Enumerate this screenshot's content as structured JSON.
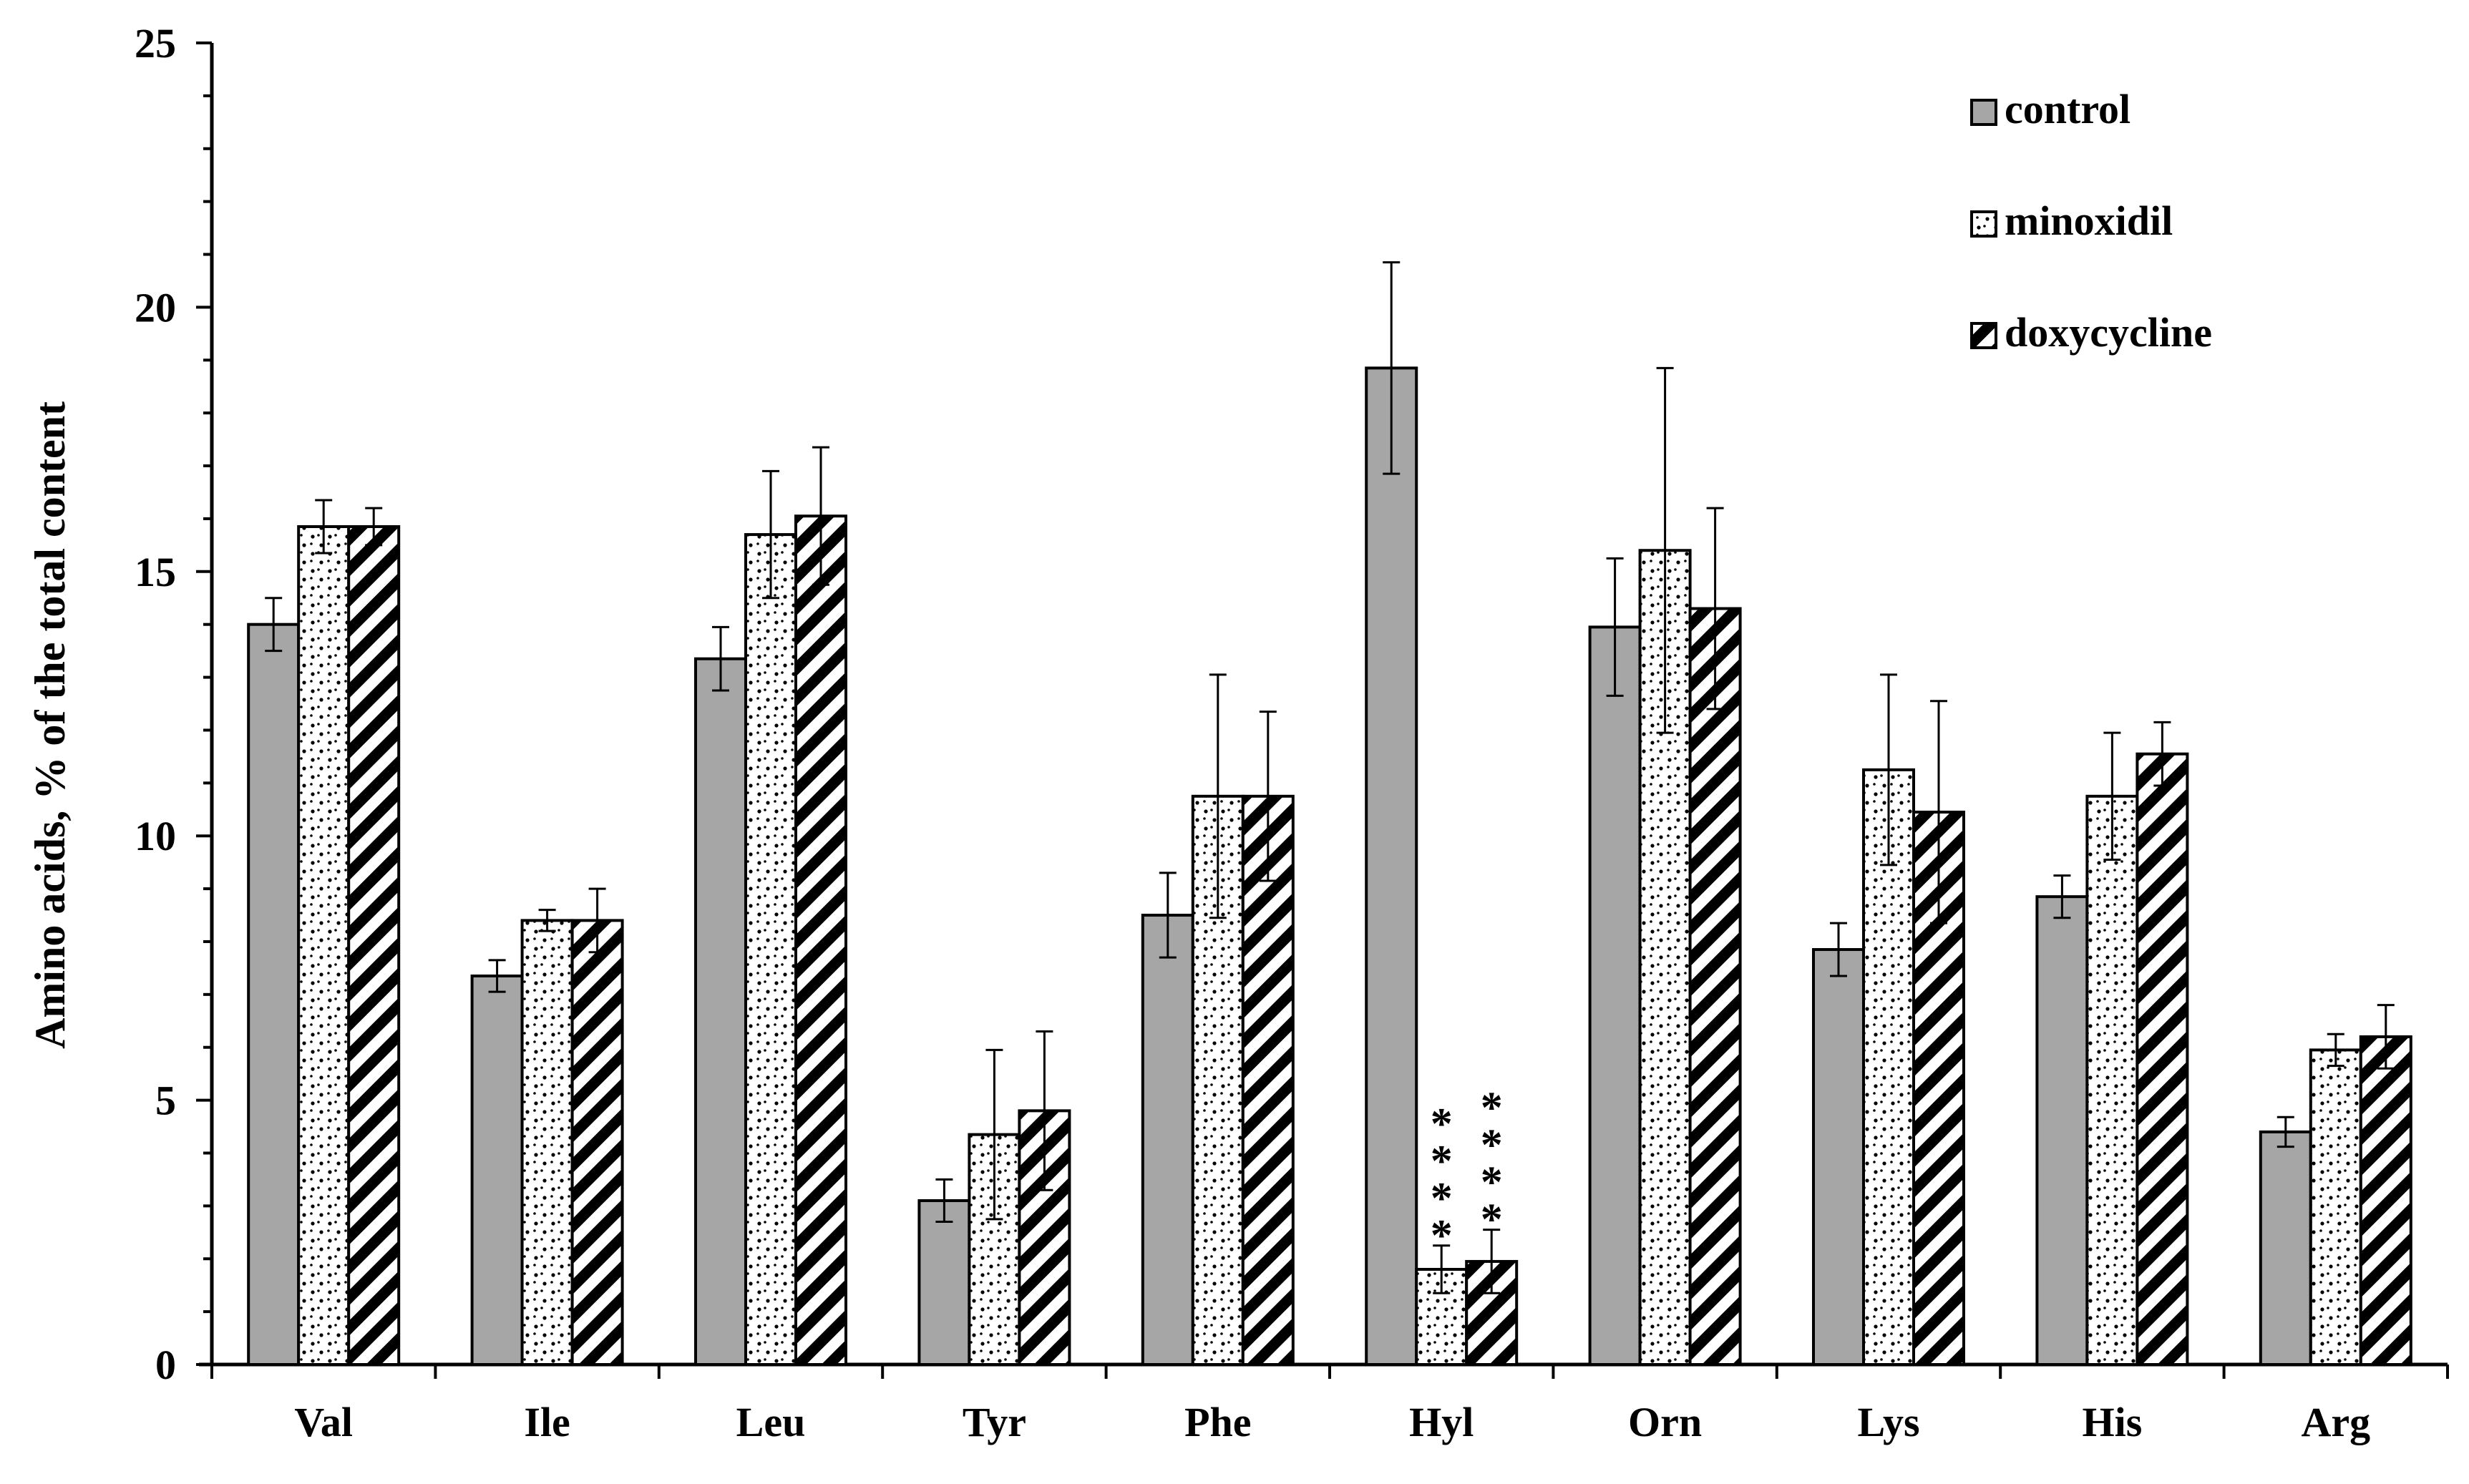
{
  "chart_data": {
    "type": "bar",
    "title": "",
    "xlabel": "",
    "ylabel": "Amino acids, % of the total content",
    "ylim": [
      0,
      25
    ],
    "yticks": [
      0,
      5,
      10,
      15,
      20,
      25
    ],
    "categories": [
      "Val",
      "Ile",
      "Leu",
      "Tyr",
      "Phe",
      "Hyl",
      "Orn",
      "Lys",
      "His",
      "Arg"
    ],
    "series": [
      {
        "name": "control",
        "pattern": "solid-gray",
        "values": [
          14.0,
          7.35,
          13.35,
          3.1,
          8.5,
          18.85,
          13.95,
          7.85,
          8.85,
          4.4
        ],
        "errors": [
          0.5,
          0.3,
          0.6,
          0.4,
          0.8,
          2.0,
          1.3,
          0.5,
          0.4,
          0.28
        ]
      },
      {
        "name": "minoxidil",
        "pattern": "dotted",
        "values": [
          15.85,
          8.4,
          15.7,
          4.35,
          10.75,
          1.8,
          15.4,
          11.25,
          10.75,
          5.95
        ],
        "errors": [
          0.5,
          0.2,
          1.2,
          1.6,
          2.3,
          0.45,
          3.45,
          1.8,
          1.2,
          0.3
        ]
      },
      {
        "name": "doxycycline",
        "pattern": "diagonal-stripes",
        "values": [
          15.85,
          8.4,
          16.05,
          4.8,
          10.75,
          1.95,
          14.3,
          10.45,
          11.55,
          6.2
        ],
        "errors": [
          0.35,
          0.6,
          1.3,
          1.5,
          1.6,
          0.6,
          1.9,
          2.1,
          0.6,
          0.6
        ]
      }
    ],
    "annotations": [
      {
        "category": "Hyl",
        "series": "minoxidil",
        "text": "****"
      },
      {
        "category": "Hyl",
        "series": "doxycycline",
        "text": "****"
      }
    ],
    "legend": {
      "position": "top-right",
      "items": [
        "control",
        "minoxidil",
        "doxycycline"
      ]
    },
    "grid": false
  },
  "colors": {
    "control": "#a6a6a6",
    "outline": "#000000",
    "background": "#ffffff"
  }
}
